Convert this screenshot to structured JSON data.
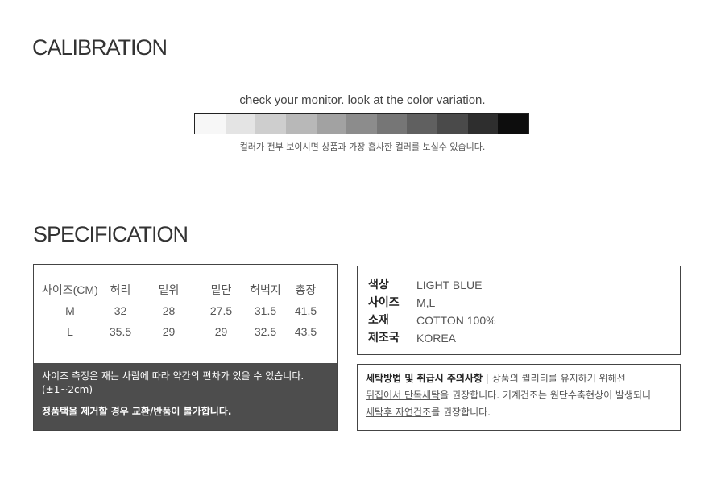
{
  "calibration": {
    "title": "CALIBRATION",
    "caption": "check your monitor. look at the color variation.",
    "note": "컬러가 전부 보이시면 상품과 가장 흡사한 컬러를 보실수 있습니다.",
    "swatches": [
      "#f7f7f7",
      "#e4e4e4",
      "#cecece",
      "#b8b8b8",
      "#a2a2a2",
      "#8c8c8c",
      "#767676",
      "#606060",
      "#4a4a4a",
      "#2e2e2e",
      "#0d0d0d"
    ]
  },
  "specification": {
    "title": "SPECIFICATION",
    "size_table": {
      "headers": [
        "사이즈(CM)",
        "허리",
        "밑위",
        "밑단",
        "허벅지",
        "총장"
      ],
      "rows": [
        [
          "M",
          "32",
          "28",
          "27.5",
          "31.5",
          "41.5"
        ],
        [
          "L",
          "35.5",
          "29",
          "29",
          "32.5",
          "43.5"
        ]
      ]
    },
    "size_note": "사이즈 측정은 재는 사람에 따라  약간의 편차가 있을 수 있습니다.",
    "size_note_range": "(±1~2cm)",
    "tag_warning": "정품택을 제거할 경우 교환/반품이 불가합니다.",
    "info": [
      {
        "label": "색상",
        "value": "LIGHT BLUE"
      },
      {
        "label": "사이즈",
        "value": "M,L"
      },
      {
        "label": "소재",
        "value": "COTTON 100%"
      },
      {
        "label": "제조국",
        "value": "KOREA"
      }
    ],
    "care": {
      "title": "세탁방법 및 취급시 주의사항",
      "sep": " | ",
      "line1": "상품의 퀄리티를 유지하기 위해선",
      "u1": "뒤집어서 단독세탁",
      "t2": "을 권장합니다. 기계건조는 원단수축현상이 발생되니",
      "u2": "세탁후 자연건조",
      "t3": "를 권장합니다."
    }
  }
}
